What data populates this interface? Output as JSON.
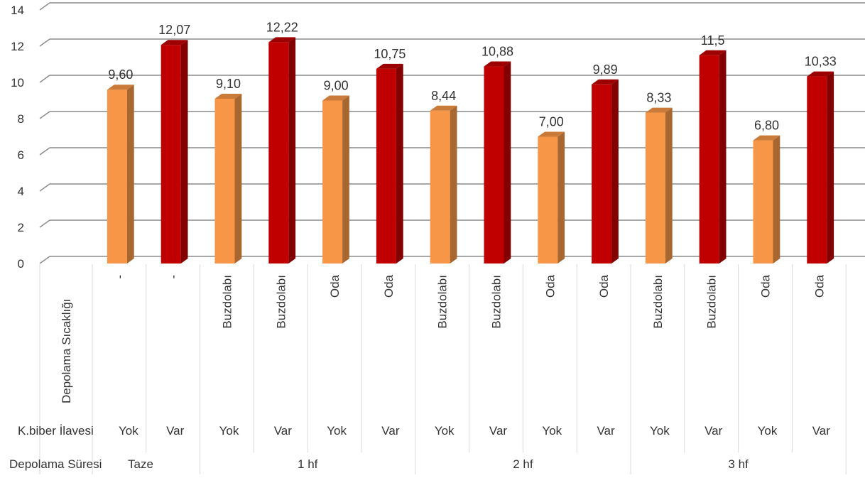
{
  "chart_data": {
    "type": "bar",
    "title": "",
    "xlabel": "",
    "ylabel": "",
    "ylim": [
      0,
      14
    ],
    "yticks": [
      0,
      2,
      4,
      6,
      8,
      10,
      12,
      14
    ],
    "grid": true,
    "colors": {
      "yok": "#F79646",
      "var": "#C00000",
      "gridline": "#8c8c8c"
    },
    "values": [
      9.6,
      12.07,
      9.1,
      12.22,
      9.0,
      10.75,
      8.44,
      10.88,
      7.0,
      9.89,
      8.33,
      11.5,
      6.8,
      10.33
    ],
    "value_labels": [
      "9,60",
      "12,07",
      "9,10",
      "12,22",
      "9,00",
      "10,75",
      "8,44",
      "10,88",
      "7,00",
      "9,89",
      "8,33",
      "11,5",
      "6,80",
      "10,33"
    ],
    "levels": {
      "storage_temp": {
        "name": "Depolama Sıcaklığı",
        "values": [
          "-",
          "-",
          "Buzdolabı",
          "Buzdolabı",
          "Oda",
          "Oda",
          "Buzdolabı",
          "Buzdolabı",
          "Oda",
          "Oda",
          "Buzdolabı",
          "Buzdolabı",
          "Oda",
          "Oda"
        ]
      },
      "pepper": {
        "name": "K.biber İlavesi",
        "values": [
          "Yok",
          "Var",
          "Yok",
          "Var",
          "Yok",
          "Var",
          "Yok",
          "Var",
          "Yok",
          "Var",
          "Yok",
          "Var",
          "Yok",
          "Var"
        ]
      },
      "duration": {
        "name": "Depolama Süresi",
        "groups": [
          {
            "label": "Taze",
            "span": 2
          },
          {
            "label": "1 hf",
            "span": 4
          },
          {
            "label": "2 hf",
            "span": 4
          },
          {
            "label": "3 hf",
            "span": 4
          }
        ]
      }
    }
  }
}
